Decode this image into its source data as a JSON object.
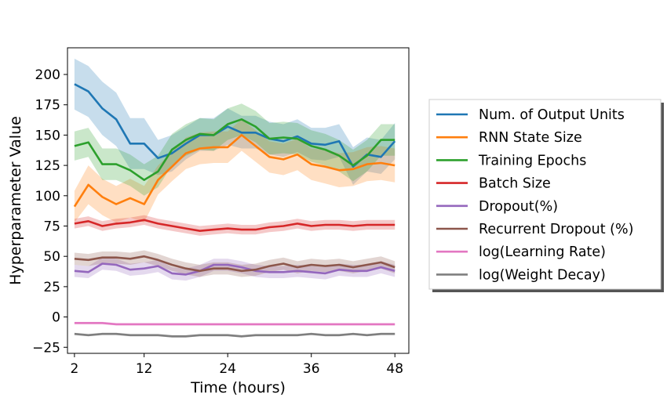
{
  "chart_data": {
    "type": "line",
    "title": "",
    "xlabel": "Time (hours)",
    "ylabel": "Hyperparameter Value",
    "xlim": [
      1,
      50
    ],
    "ylim": [
      -30,
      222
    ],
    "xticks": [
      2,
      12,
      24,
      36,
      48
    ],
    "yticks": [
      -25,
      0,
      25,
      50,
      75,
      100,
      125,
      150,
      175,
      200
    ],
    "grid": false,
    "legend_position": "right",
    "x": [
      2,
      4,
      6,
      8,
      10,
      12,
      14,
      16,
      18,
      20,
      22,
      24,
      26,
      28,
      30,
      32,
      34,
      36,
      38,
      40,
      42,
      44,
      46,
      48
    ],
    "series": [
      {
        "name": "Num. of Output Units",
        "color": "#1f77b4",
        "values": [
          192,
          186,
          172,
          163,
          143,
          143,
          131,
          135,
          143,
          150,
          150,
          157,
          152,
          152,
          147,
          145,
          149,
          143,
          142,
          145,
          124,
          134,
          132,
          145
        ],
        "lower": [
          171,
          165,
          150,
          141,
          122,
          122,
          117,
          120,
          130,
          137,
          137,
          142,
          139,
          139,
          134,
          132,
          136,
          130,
          129,
          132,
          109,
          120,
          118,
          130
        ],
        "upper": [
          213,
          207,
          194,
          185,
          164,
          164,
          146,
          150,
          157,
          164,
          164,
          172,
          166,
          166,
          161,
          159,
          163,
          156,
          156,
          159,
          140,
          148,
          146,
          160
        ]
      },
      {
        "name": "RNN State Size",
        "color": "#ff7f0e",
        "values": [
          91,
          109,
          99,
          93,
          98,
          93,
          113,
          124,
          135,
          139,
          140,
          140,
          150,
          141,
          132,
          130,
          134,
          126,
          124,
          121,
          122,
          126,
          127,
          125
        ],
        "lower": [
          78,
          93,
          84,
          78,
          82,
          78,
          101,
          112,
          122,
          126,
          127,
          127,
          137,
          128,
          119,
          117,
          121,
          113,
          110,
          107,
          108,
          112,
          113,
          111
        ],
        "upper": [
          104,
          125,
          114,
          108,
          114,
          108,
          125,
          136,
          148,
          152,
          153,
          153,
          163,
          154,
          145,
          143,
          147,
          139,
          138,
          135,
          136,
          140,
          141,
          139
        ]
      },
      {
        "name": "Training Epochs",
        "color": "#2ca02c",
        "values": [
          141,
          144,
          126,
          126,
          121,
          113,
          120,
          138,
          146,
          151,
          150,
          159,
          163,
          157,
          147,
          148,
          147,
          141,
          138,
          133,
          125,
          133,
          146,
          146
        ],
        "lower": [
          129,
          132,
          113,
          113,
          108,
          100,
          107,
          125,
          133,
          138,
          137,
          146,
          150,
          144,
          134,
          135,
          134,
          128,
          125,
          120,
          112,
          120,
          133,
          133
        ],
        "upper": [
          153,
          156,
          139,
          139,
          134,
          126,
          133,
          151,
          159,
          164,
          163,
          172,
          176,
          170,
          160,
          161,
          160,
          154,
          151,
          146,
          138,
          146,
          159,
          159
        ]
      },
      {
        "name": "Batch Size",
        "color": "#d62728",
        "values": [
          77,
          79,
          75,
          77,
          78,
          80,
          77,
          75,
          73,
          71,
          72,
          73,
          72,
          72,
          74,
          75,
          77,
          75,
          76,
          76,
          75,
          76,
          76,
          76
        ],
        "lower": [
          73,
          75,
          71,
          73,
          74,
          76,
          73,
          71,
          69,
          67,
          68,
          69,
          68,
          68,
          70,
          71,
          73,
          71,
          72,
          72,
          71,
          72,
          72,
          72
        ],
        "upper": [
          81,
          83,
          79,
          81,
          82,
          84,
          81,
          79,
          77,
          75,
          76,
          77,
          76,
          76,
          78,
          79,
          81,
          79,
          80,
          80,
          79,
          80,
          80,
          80
        ]
      },
      {
        "name": "Dropout(%)",
        "color": "#9467bd",
        "values": [
          38,
          37,
          44,
          43,
          39,
          40,
          42,
          36,
          35,
          38,
          43,
          43,
          41,
          38,
          37,
          37,
          38,
          37,
          36,
          39,
          38,
          38,
          41,
          38
        ],
        "lower": [
          33,
          32,
          39,
          38,
          34,
          35,
          37,
          31,
          30,
          33,
          38,
          38,
          36,
          33,
          32,
          32,
          33,
          32,
          31,
          34,
          33,
          33,
          36,
          33
        ],
        "upper": [
          43,
          42,
          49,
          48,
          44,
          45,
          47,
          41,
          40,
          43,
          48,
          48,
          46,
          43,
          42,
          42,
          43,
          42,
          41,
          44,
          43,
          43,
          46,
          43
        ]
      },
      {
        "name": "Recurrent Dropout (%)",
        "color": "#8c564b",
        "values": [
          48,
          47,
          49,
          49,
          48,
          50,
          47,
          43,
          40,
          38,
          40,
          40,
          38,
          39,
          42,
          44,
          41,
          43,
          42,
          43,
          41,
          43,
          45,
          41
        ],
        "lower": [
          43,
          42,
          44,
          44,
          43,
          45,
          42,
          38,
          35,
          33,
          35,
          35,
          33,
          34,
          37,
          39,
          36,
          38,
          37,
          38,
          36,
          38,
          40,
          36
        ],
        "upper": [
          53,
          52,
          54,
          54,
          53,
          55,
          52,
          48,
          45,
          43,
          45,
          45,
          43,
          44,
          47,
          49,
          46,
          48,
          47,
          48,
          46,
          48,
          50,
          46
        ]
      },
      {
        "name": "log(Learning Rate)",
        "color": "#e377c2",
        "values": [
          -5,
          -5,
          -5,
          -6,
          -6,
          -6,
          -6,
          -6,
          -6,
          -6,
          -6,
          -6,
          -6,
          -6,
          -6,
          -6,
          -6,
          -6,
          -6,
          -6,
          -6,
          -6,
          -6,
          -6
        ],
        "lower": [
          -6,
          -6,
          -6,
          -7,
          -7,
          -7,
          -7,
          -7,
          -7,
          -7,
          -7,
          -7,
          -7,
          -7,
          -7,
          -7,
          -7,
          -7,
          -7,
          -7,
          -7,
          -7,
          -7,
          -7
        ],
        "upper": [
          -4,
          -4,
          -4,
          -5,
          -5,
          -5,
          -5,
          -5,
          -5,
          -5,
          -5,
          -5,
          -5,
          -5,
          -5,
          -5,
          -5,
          -5,
          -5,
          -5,
          -5,
          -5,
          -5,
          -5
        ]
      },
      {
        "name": "log(Weight Decay)",
        "color": "#7f7f7f",
        "values": [
          -14,
          -15,
          -14,
          -14,
          -15,
          -15,
          -15,
          -16,
          -16,
          -15,
          -15,
          -15,
          -16,
          -15,
          -15,
          -15,
          -15,
          -14,
          -15,
          -15,
          -14,
          -15,
          -14,
          -14
        ],
        "lower": [
          -15,
          -16,
          -15,
          -15,
          -16,
          -16,
          -16,
          -17,
          -17,
          -16,
          -16,
          -16,
          -17,
          -16,
          -16,
          -16,
          -16,
          -15,
          -16,
          -16,
          -15,
          -16,
          -15,
          -15
        ],
        "upper": [
          -13,
          -14,
          -13,
          -13,
          -14,
          -14,
          -14,
          -15,
          -15,
          -14,
          -14,
          -14,
          -15,
          -14,
          -14,
          -14,
          -14,
          -13,
          -14,
          -14,
          -13,
          -14,
          -13,
          -13
        ]
      }
    ]
  }
}
